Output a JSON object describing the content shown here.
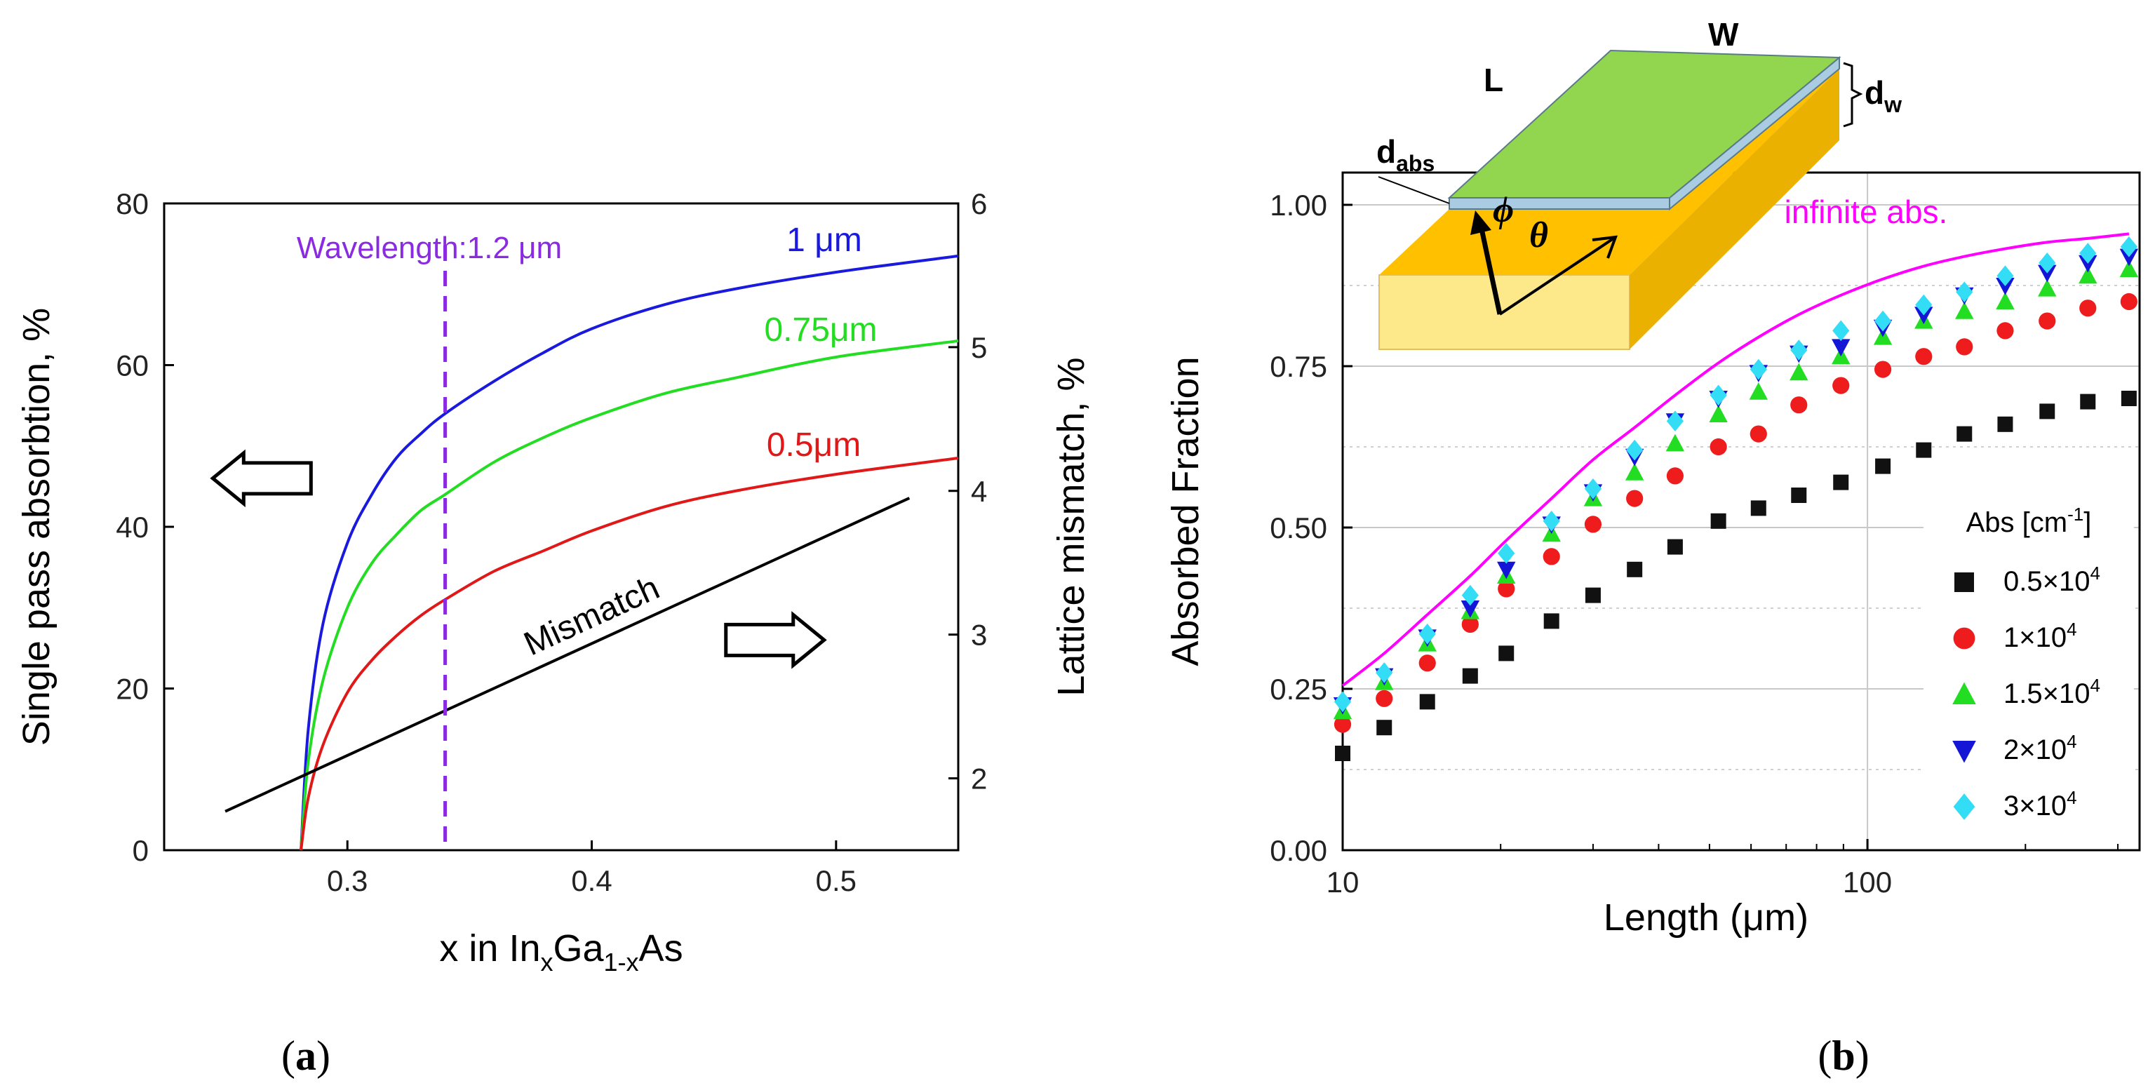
{
  "panel_a": {
    "caption": "a",
    "chart_data": {
      "type": "line",
      "xlabel": {
        "prefix": "x in In",
        "sub1": "x",
        "mid": "Ga",
        "sub2": "1-x",
        "suffix": "As"
      },
      "ylabel": "Single pass absorbtion, %",
      "y2label": "Lattice mismatch, %",
      "xlim": [
        0.225,
        0.55
      ],
      "ylim": [
        0,
        80
      ],
      "y2lim": [
        1.5,
        6
      ],
      "x_ticks": [
        0.3,
        0.4,
        0.5
      ],
      "x_tick_labels": [
        "0.3",
        "0.4",
        "0.5"
      ],
      "y_ticks": [
        0,
        20,
        40,
        60,
        80
      ],
      "y_tick_labels": [
        "0",
        "20",
        "40",
        "60",
        "80"
      ],
      "y2_ticks": [
        2,
        3,
        4,
        5,
        6
      ],
      "y2_tick_labels": [
        "2",
        "3",
        "4",
        "5",
        "6"
      ],
      "marker_line": {
        "x": 0.34,
        "label": "Wavelength:1.2 μm",
        "color": "#8a2be2"
      },
      "series": [
        {
          "name": "1 μm",
          "color": "#1a1adf",
          "axis": "left",
          "x": [
            0.281,
            0.284,
            0.29,
            0.3,
            0.31,
            0.32,
            0.33,
            0.34,
            0.36,
            0.38,
            0.4,
            0.43,
            0.46,
            0.5,
            0.55
          ],
          "y": [
            0,
            15,
            28,
            38,
            44,
            48.5,
            51.5,
            54,
            58,
            61.5,
            64.5,
            67.5,
            69.5,
            71.5,
            73.5
          ]
        },
        {
          "name": "0.75μm",
          "color": "#22dd22",
          "axis": "left",
          "x": [
            0.281,
            0.284,
            0.29,
            0.3,
            0.31,
            0.32,
            0.33,
            0.34,
            0.36,
            0.38,
            0.4,
            0.43,
            0.46,
            0.5,
            0.55
          ],
          "y": [
            0,
            11,
            21,
            30,
            35.5,
            39,
            42,
            44,
            48,
            51,
            53.5,
            56.5,
            58.5,
            61,
            63
          ]
        },
        {
          "name": "0.5μm",
          "color": "#e01818",
          "axis": "left",
          "x": [
            0.281,
            0.284,
            0.29,
            0.3,
            0.31,
            0.32,
            0.33,
            0.34,
            0.36,
            0.38,
            0.4,
            0.43,
            0.46,
            0.5,
            0.55
          ],
          "y": [
            0,
            6.5,
            13,
            19.5,
            23.5,
            26.5,
            29,
            31,
            34.5,
            37,
            39.5,
            42.5,
            44.5,
            46.5,
            48.5
          ]
        },
        {
          "name": "Mismatch",
          "color": "#000000",
          "axis": "right",
          "x": [
            0.25,
            0.53
          ],
          "y": [
            1.77,
            3.95
          ]
        }
      ],
      "arrows": [
        {
          "points": "left",
          "x": 0.265,
          "y": 46
        },
        {
          "points": "right",
          "x": 0.475,
          "y": 26
        }
      ]
    }
  },
  "panel_b": {
    "caption": "b",
    "chart_data": {
      "type": "scatter",
      "xscale": "log",
      "xlabel": "Length (μm)",
      "ylabel": "Absorbed Fraction",
      "xlim": [
        10,
        330
      ],
      "ylim": [
        0,
        1.05
      ],
      "x_ticks": [
        10,
        100
      ],
      "x_tick_labels": [
        "10",
        "100"
      ],
      "y_ticks": [
        0,
        0.25,
        0.5,
        0.75,
        1.0
      ],
      "y_tick_labels": [
        "0.00",
        "0.25",
        "0.50",
        "0.75",
        "1.00"
      ],
      "grid": true,
      "x": [
        10,
        12,
        14.5,
        17.5,
        20.5,
        25,
        30,
        36,
        43,
        52,
        62,
        74,
        89,
        107,
        128,
        153,
        183,
        220,
        263,
        315
      ],
      "curve": {
        "name": "infinite abs.",
        "color": "#ff00ff",
        "x": [
          10,
          12,
          14.5,
          17.5,
          20.5,
          25,
          30,
          36,
          43,
          52,
          62,
          74,
          89,
          107,
          128,
          153,
          183,
          220,
          263,
          315
        ],
        "y": [
          0.255,
          0.305,
          0.365,
          0.425,
          0.48,
          0.545,
          0.605,
          0.655,
          0.705,
          0.755,
          0.795,
          0.83,
          0.86,
          0.885,
          0.905,
          0.92,
          0.932,
          0.942,
          0.948,
          0.955
        ]
      },
      "legend_title": "Abs [cm",
      "legend_title_sup": "-1",
      "legend_title_end": "]",
      "series": [
        {
          "name": "0.5×10",
          "exp": "4",
          "marker": "square",
          "color": "#111111",
          "y": [
            0.15,
            0.19,
            0.23,
            0.27,
            0.305,
            0.355,
            0.395,
            0.435,
            0.47,
            0.51,
            0.53,
            0.55,
            0.57,
            0.595,
            0.62,
            0.645,
            0.66,
            0.68,
            0.695,
            0.7
          ]
        },
        {
          "name": "1×10",
          "exp": "4",
          "marker": "circle",
          "color": "#ee1c1c",
          "y": [
            0.195,
            0.235,
            0.29,
            0.35,
            0.405,
            0.455,
            0.505,
            0.545,
            0.58,
            0.625,
            0.645,
            0.69,
            0.72,
            0.745,
            0.765,
            0.78,
            0.805,
            0.82,
            0.84,
            0.85
          ]
        },
        {
          "name": "1.5×10",
          "exp": "4",
          "marker": "triangle-up",
          "color": "#22dd22",
          "y": [
            0.215,
            0.26,
            0.32,
            0.37,
            0.425,
            0.49,
            0.545,
            0.585,
            0.63,
            0.675,
            0.71,
            0.74,
            0.765,
            0.795,
            0.82,
            0.835,
            0.85,
            0.87,
            0.89,
            0.9
          ]
        },
        {
          "name": "2×10",
          "exp": "4",
          "marker": "triangle-down",
          "color": "#1515d6",
          "y": [
            0.225,
            0.27,
            0.33,
            0.375,
            0.435,
            0.505,
            0.555,
            0.61,
            0.665,
            0.7,
            0.74,
            0.77,
            0.78,
            0.81,
            0.83,
            0.86,
            0.875,
            0.895,
            0.91,
            0.92
          ]
        },
        {
          "name": "3×10",
          "exp": "4",
          "marker": "diamond",
          "color": "#33ddf5",
          "y": [
            0.23,
            0.275,
            0.335,
            0.395,
            0.46,
            0.51,
            0.56,
            0.62,
            0.665,
            0.705,
            0.745,
            0.775,
            0.805,
            0.82,
            0.845,
            0.865,
            0.89,
            0.91,
            0.925,
            0.935
          ]
        }
      ]
    },
    "inset": {
      "label_w": "W",
      "label_l": "L",
      "label_dw": "d",
      "label_dw_sub": "w",
      "label_dabs": "d",
      "label_dabs_sub": "abs",
      "label_phi": "ϕ",
      "label_theta": "θ",
      "colors": {
        "top": "#92d650",
        "film_edge": "#a9cce3",
        "slab_front": "#fde88a",
        "slab_top": "#ffc000",
        "slab_side": "#ebb100"
      }
    }
  }
}
